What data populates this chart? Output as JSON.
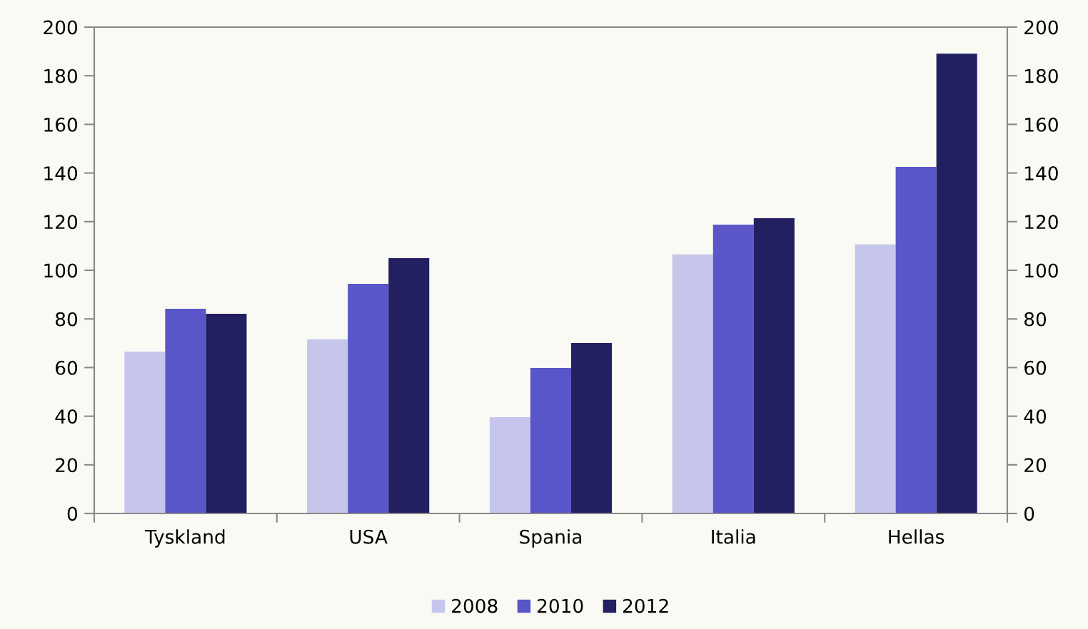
{
  "chart_data": {
    "type": "bar",
    "categories": [
      "Tyskland",
      "USA",
      "Spania",
      "Italia",
      "Hellas"
    ],
    "series": [
      {
        "name": "2008",
        "color": "#c6c6ec",
        "values": [
          66.6,
          71.6,
          39.6,
          106.5,
          110.6
        ]
      },
      {
        "name": "2010",
        "color": "#5856c8",
        "values": [
          84.2,
          94.4,
          59.8,
          118.8,
          142.5
        ]
      },
      {
        "name": "2012",
        "color": "#222060",
        "values": [
          82.1,
          105.0,
          70.1,
          121.4,
          189.1
        ]
      }
    ],
    "ylim": [
      0,
      200
    ],
    "yticks": [
      0,
      20,
      40,
      60,
      80,
      100,
      120,
      140,
      160,
      180,
      200
    ],
    "y2lim": [
      0,
      200
    ],
    "y2ticks": [
      0,
      20,
      40,
      60,
      80,
      100,
      120,
      140,
      160,
      180,
      200
    ],
    "grid": false,
    "legend": "bottom"
  }
}
